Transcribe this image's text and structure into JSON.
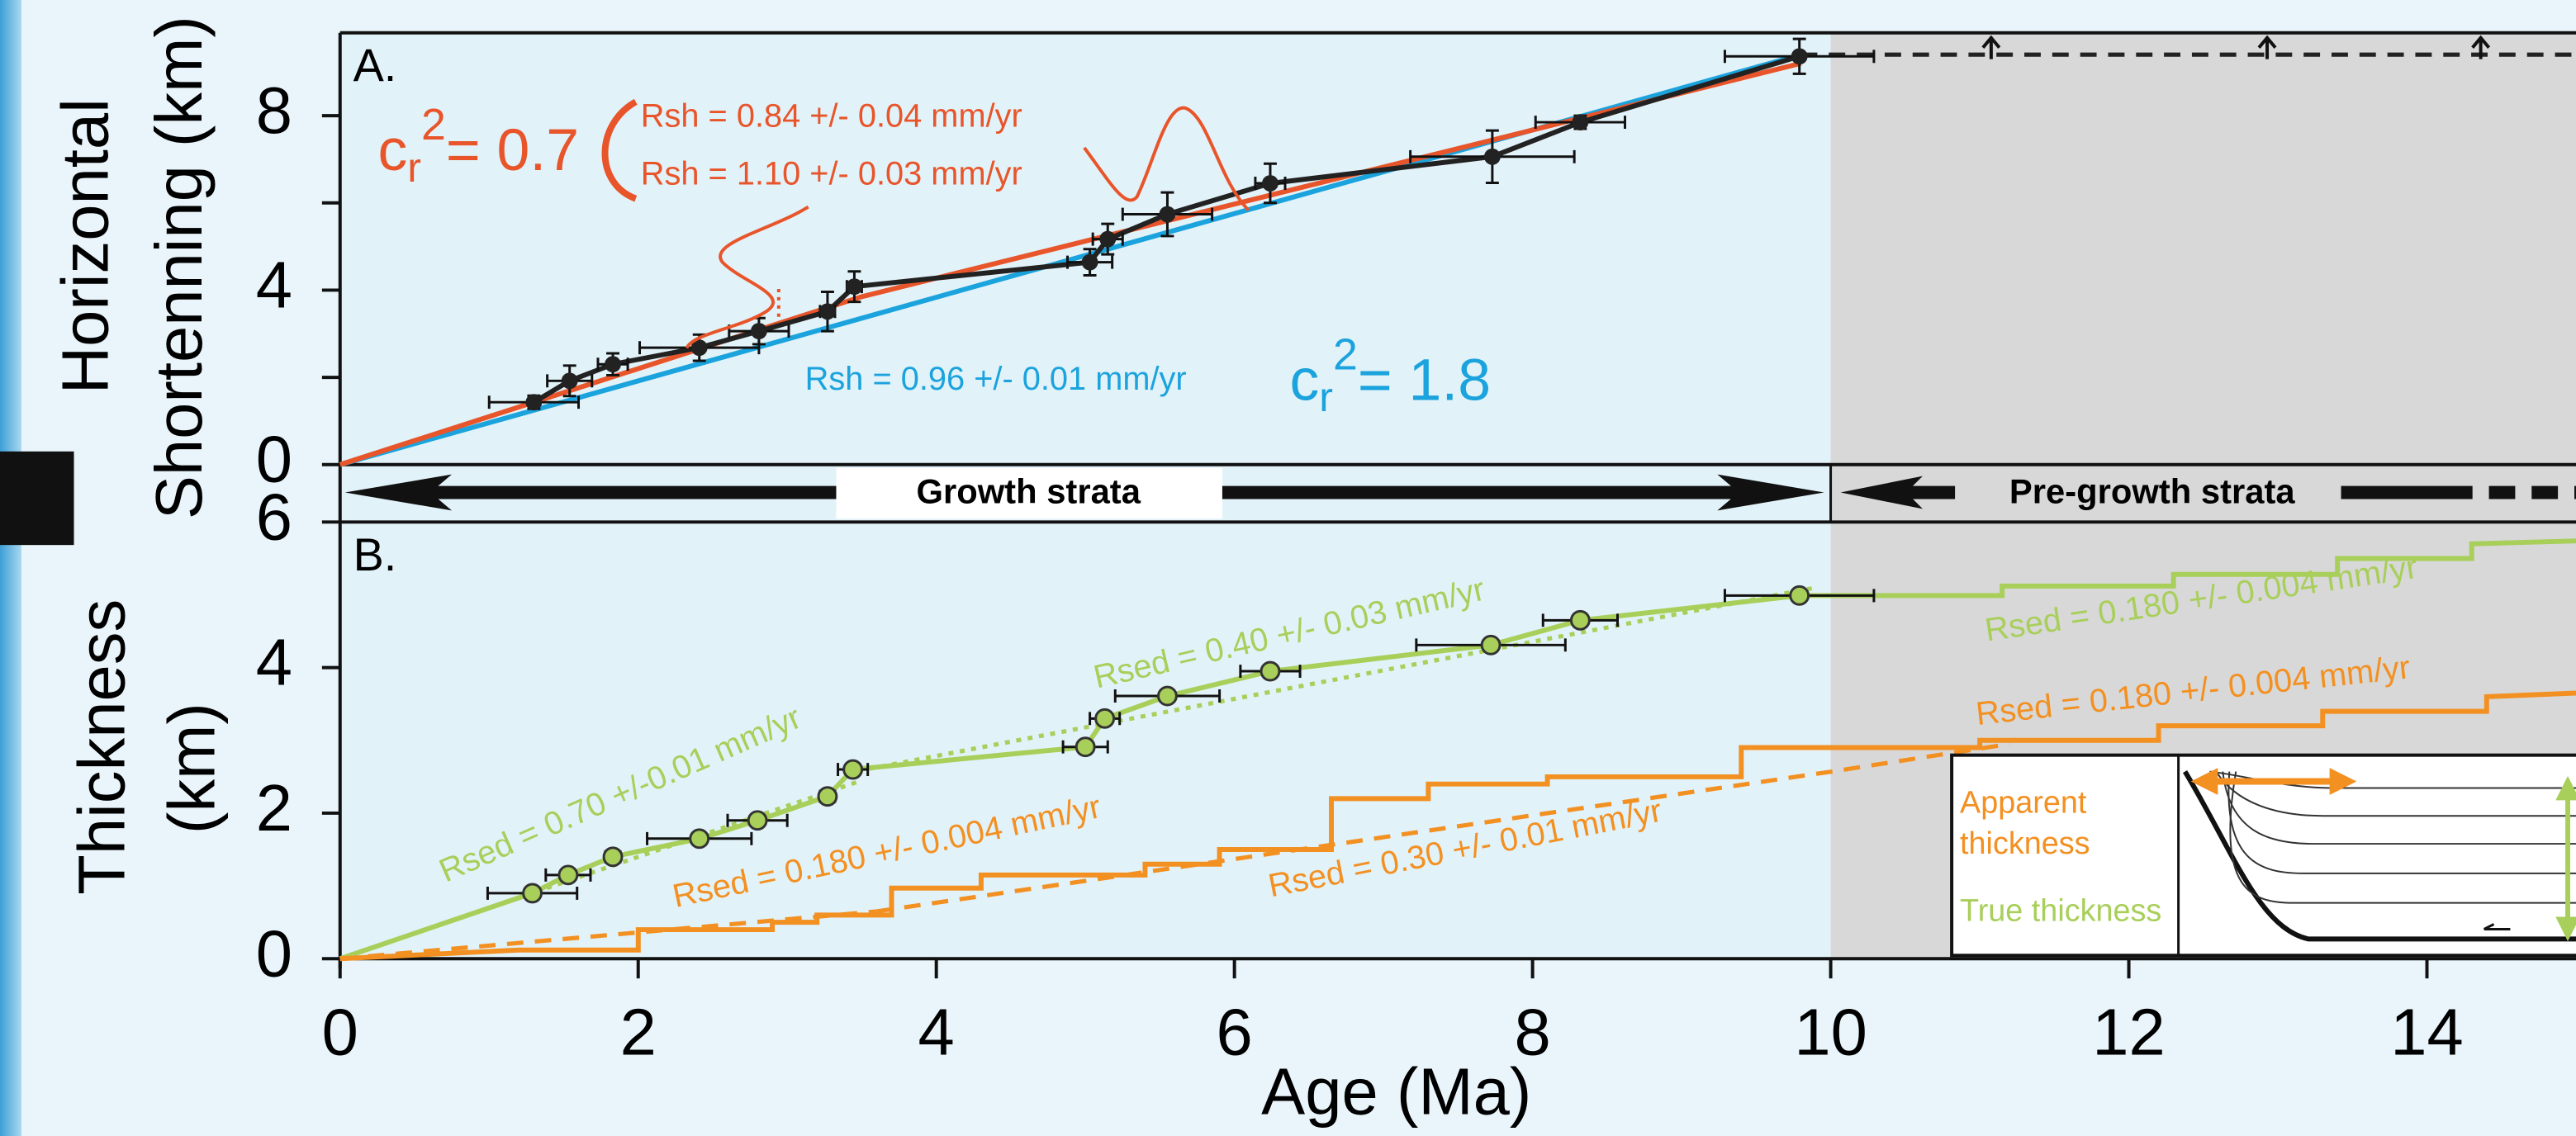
{
  "band_labels": [
    "Growth strata",
    "Pre-growth strata"
  ],
  "chart_data": [
    {
      "type": "line",
      "panel_label": "A.",
      "ylabel": [
        "Horizontal",
        "Shortenning (km)"
      ],
      "xlim": [
        0,
        15
      ],
      "ylim": [
        0,
        9.9
      ],
      "yticks": [
        0,
        4,
        8
      ],
      "minor_yticks": [
        2,
        6
      ],
      "shaded_xlim": [
        10,
        15
      ],
      "series": [
        {
          "color": "#1ba3dd",
          "style": "solid",
          "x": [
            0,
            9.8
          ],
          "values": [
            0,
            9.4
          ]
        },
        {
          "color": "#e8552a",
          "style": "solid",
          "x": [
            0,
            3.5,
            9.8
          ],
          "values": [
            0,
            3.85,
            9.2
          ]
        },
        {
          "color": "#222222",
          "style": "solid",
          "marker": "point",
          "x": [
            1.3,
            1.54,
            1.83,
            2.41,
            2.81,
            3.27,
            3.45,
            5.03,
            5.15,
            5.55,
            6.24,
            7.73,
            8.32,
            9.79
          ],
          "values": [
            1.43,
            1.92,
            2.3,
            2.68,
            3.06,
            3.51,
            4.08,
            4.64,
            5.17,
            5.74,
            6.45,
            7.06,
            7.85,
            9.36
          ],
          "xerr": [
            0.3,
            0.15,
            0.1,
            0.4,
            0.2,
            0.05,
            0.05,
            0.15,
            0.1,
            0.3,
            0.1,
            0.55,
            0.3,
            0.5
          ],
          "yerr": [
            0.15,
            0.35,
            0.25,
            0.3,
            0.3,
            0.45,
            0.35,
            0.3,
            0.35,
            0.5,
            0.45,
            0.6,
            0.15,
            0.4
          ]
        },
        {
          "color": "#222222",
          "style": "dashed",
          "x": [
            9.8,
            15
          ],
          "values": [
            9.4,
            9.4
          ]
        }
      ],
      "annotations": [
        {
          "text": "c",
          "sub": "r",
          "sup": "2",
          "rest": "= 0.7",
          "color": "#e8552a"
        },
        {
          "text": "Rsh = 0.84 +/- 0.04 mm/yr",
          "color": "#e8552a"
        },
        {
          "text": "Rsh = 1.10 +/- 0.03 mm/yr",
          "color": "#e8552a"
        },
        {
          "text": "Rsh = 0.96 +/- 0.01 mm/yr",
          "color": "#1ba3dd"
        },
        {
          "text": "c",
          "sub": "r",
          "sup": "2",
          "rest": "= 1.8",
          "color": "#1ba3dd"
        }
      ]
    },
    {
      "type": "line",
      "panel_label": "B.",
      "ylabel": [
        "Thickness",
        "(km)"
      ],
      "xlabel": "Age (Ma)",
      "xlim": [
        0,
        15
      ],
      "ylim": [
        0,
        6
      ],
      "yticks": [
        0,
        2,
        4,
        6
      ],
      "xticks": [
        0,
        2,
        4,
        6,
        8,
        10,
        12,
        14
      ],
      "shaded_xlim": [
        10,
        15
      ],
      "series": [
        {
          "color": "#a8cf5a",
          "style": "dotted",
          "x": [
            0,
            3.5
          ],
          "values": [
            0,
            2.45
          ]
        },
        {
          "color": "#a8cf5a",
          "style": "dotted",
          "x": [
            3.4,
            9.9
          ],
          "values": [
            2.55,
            5.1
          ]
        },
        {
          "color": "#f39022",
          "style": "dashed",
          "x": [
            0,
            3.6
          ],
          "values": [
            0,
            0.65
          ]
        },
        {
          "color": "#f39022",
          "style": "dashed",
          "x": [
            3.6,
            10,
            11.2
          ],
          "values": [
            0.65,
            2.57,
            2.95
          ]
        },
        {
          "color": "#a8cf5a",
          "style": "solid",
          "x": [
            0,
            1.29,
            1.53,
            1.83,
            2.41,
            2.8,
            3.27,
            3.44,
            5.0,
            5.13,
            5.55,
            6.24,
            7.72,
            8.32,
            9.79,
            11.15,
            11.15,
            12.3,
            12.3,
            13.4,
            13.4,
            14.3,
            14.3,
            15
          ],
          "values": [
            0,
            0.9,
            1.15,
            1.4,
            1.65,
            1.9,
            2.23,
            2.6,
            2.91,
            3.3,
            3.61,
            3.95,
            4.31,
            4.65,
            4.99,
            4.99,
            5.12,
            5.12,
            5.28,
            5.28,
            5.5,
            5.5,
            5.7,
            5.74
          ]
        },
        {
          "color": "#f39022",
          "style": "solid",
          "x": [
            0,
            1.2,
            2.0,
            2.0,
            2.9,
            2.9,
            3.2,
            3.2,
            3.7,
            3.7,
            4.3,
            4.3,
            5.4,
            5.4,
            5.9,
            5.9,
            6.65,
            6.65,
            7.3,
            7.3,
            8.1,
            8.1,
            9.4,
            9.4,
            11.0,
            11.0,
            12.2,
            12.2,
            13.3,
            13.3,
            14.4,
            14.4,
            15
          ],
          "values": [
            0,
            0.12,
            0.12,
            0.4,
            0.4,
            0.5,
            0.5,
            0.6,
            0.6,
            0.97,
            0.97,
            1.15,
            1.15,
            1.3,
            1.3,
            1.5,
            1.5,
            2.2,
            2.2,
            2.4,
            2.4,
            2.5,
            2.5,
            2.9,
            2.9,
            3.0,
            3.0,
            3.2,
            3.2,
            3.4,
            3.4,
            3.6,
            3.65
          ]
        },
        {
          "color": "#a8cf5a",
          "style": "none",
          "marker": "circle",
          "x": [
            1.29,
            1.53,
            1.83,
            2.41,
            2.8,
            3.27,
            3.44,
            5.0,
            5.13,
            5.55,
            6.24,
            7.72,
            8.32,
            9.79
          ],
          "values": [
            0.9,
            1.15,
            1.4,
            1.65,
            1.9,
            2.23,
            2.6,
            2.91,
            3.3,
            3.61,
            3.95,
            4.31,
            4.65,
            4.99
          ],
          "xerr": [
            0.3,
            0.15,
            0.05,
            0.35,
            0.2,
            0.05,
            0.1,
            0.15,
            0.1,
            0.35,
            0.2,
            0.5,
            0.25,
            0.5
          ]
        }
      ],
      "annotations": [
        {
          "text": "Rsed =  0.70 +/-0.01 mm/yr",
          "color": "#a8cf5a"
        },
        {
          "text": "Rsed = 0.40 +/- 0.03 mm/yr",
          "color": "#a8cf5a"
        },
        {
          "text": "Rsed = 0.180 +/- 0.004 mm/yr",
          "color": "#a8cf5a"
        },
        {
          "text": "Rsed = 0.180 +/- 0.004 mm/yr",
          "color": "#f39022"
        },
        {
          "text": "Rsed  = 0.180 +/- 0.004 mm/yr",
          "color": "#f39022"
        },
        {
          "text": "Rsed = 0.30 +/-  0.01 mm/yr",
          "color": "#f39022"
        }
      ],
      "inset": {
        "labels": [
          "Apparent",
          "thickness",
          "True thickness"
        ],
        "colors": [
          "#f39022",
          "#f39022",
          "#a8cf5a"
        ]
      }
    }
  ]
}
